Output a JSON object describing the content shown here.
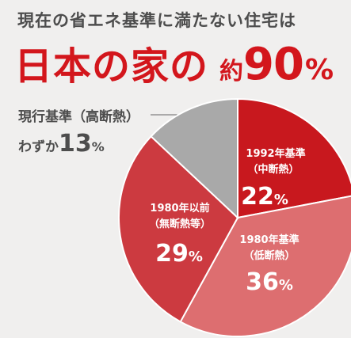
{
  "headline": "現在の省エネ基準に満たない住宅は",
  "main_title": {
    "part1": "日本の家の",
    "approx": "約",
    "number": "90",
    "percent": "%"
  },
  "callout": {
    "label": "現行基準（高断熱）",
    "prefix": "わずか",
    "value": "13",
    "percent": "%"
  },
  "colors": {
    "s1992": "#c8181e",
    "s1980_teiko": "#dd6e70",
    "s1980_before": "#cc3a40",
    "current": "#a9a9a9",
    "text_dark": "#4d4d4d",
    "accent_red": "#d3161c"
  },
  "chart_data": {
    "type": "pie",
    "slices": [
      {
        "label_line1": "1992年基準",
        "label_line2": "（中断熱）",
        "value": 22,
        "value_text": "22",
        "pct_text": "%",
        "color": "#c8181e"
      },
      {
        "label_line1": "1980年基準",
        "label_line2": "（低断熱）",
        "value": 36,
        "value_text": "36",
        "pct_text": "%",
        "color": "#dd6e70"
      },
      {
        "label_line1": "1980年以前",
        "label_line2": "（無断熱等）",
        "value": 29,
        "value_text": "29",
        "pct_text": "%",
        "color": "#cc3a40"
      },
      {
        "label_line1": "現行基準（高断熱）",
        "label_line2": "",
        "value": 13,
        "value_text": "13",
        "pct_text": "%",
        "color": "#a9a9a9"
      }
    ]
  }
}
